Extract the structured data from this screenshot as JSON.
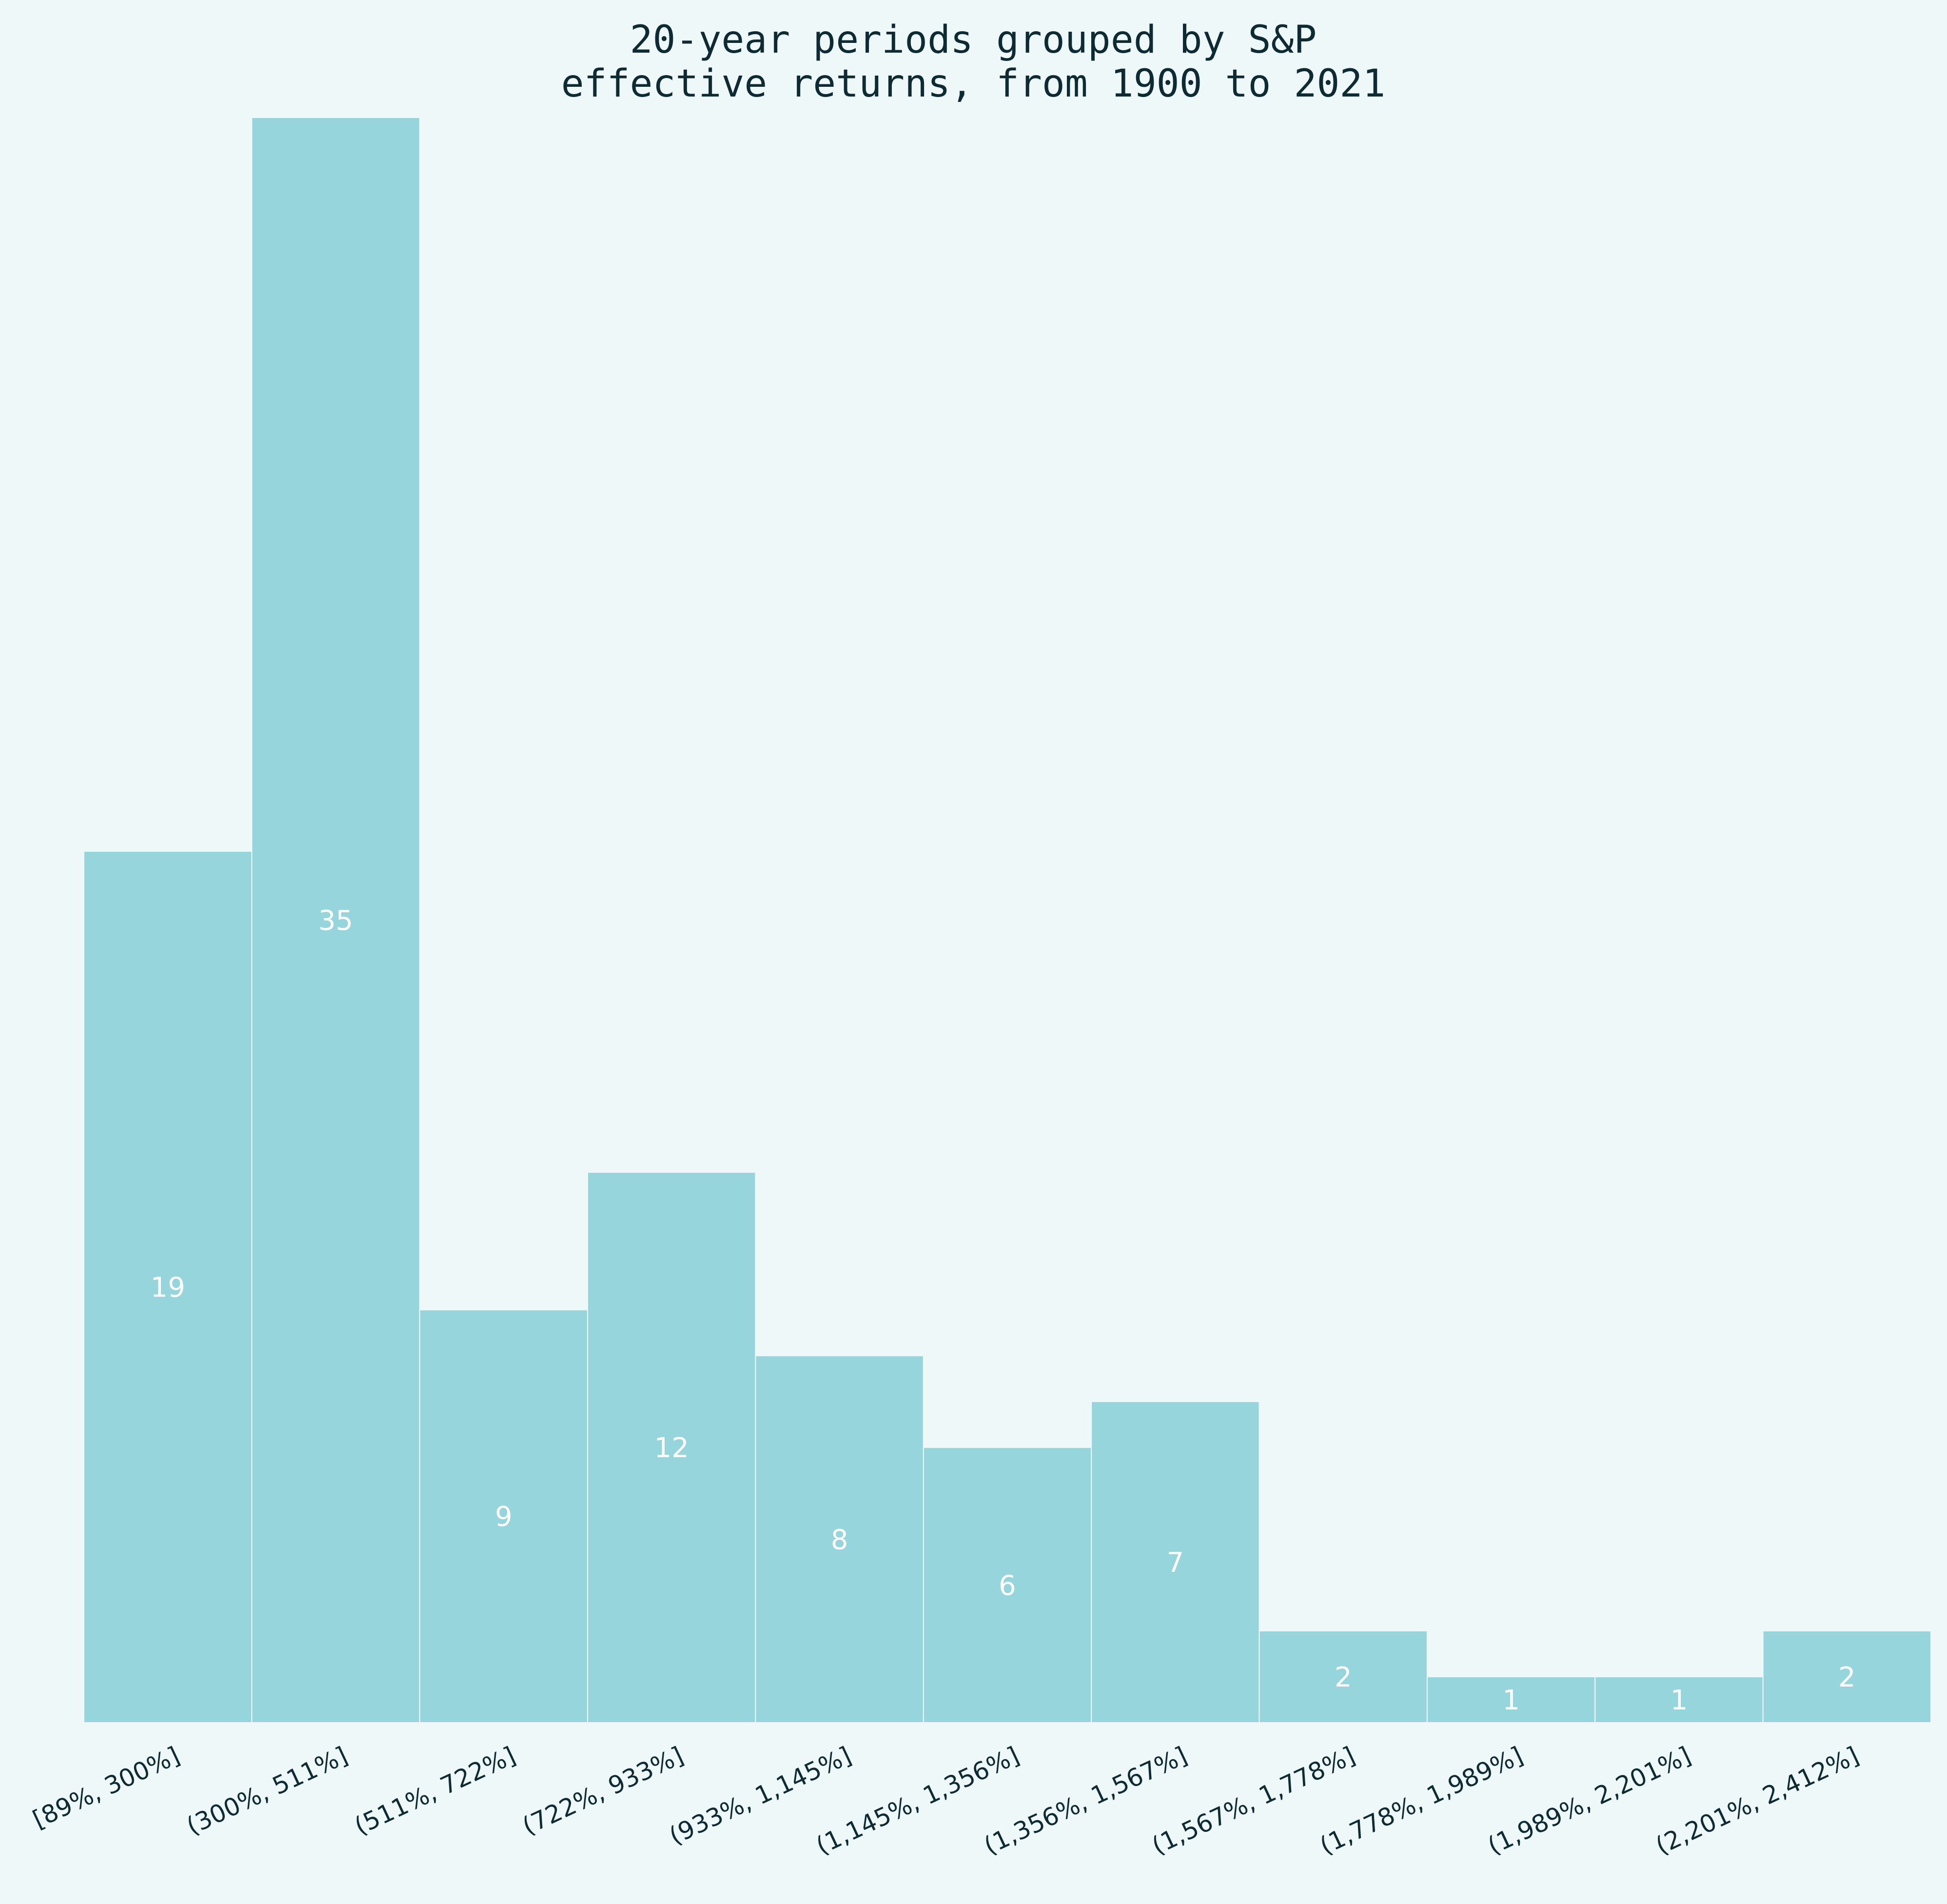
{
  "chart_data": {
    "type": "bar",
    "title": "20-year periods grouped by S&P\neffective returns, from 1900 to 2021",
    "title_lines": [
      "20-year periods grouped by S&P",
      "effective returns, from 1900 to 2021"
    ],
    "categories": [
      "[89%, 300%]",
      "(300%, 511%]",
      "(511%, 722%]",
      "(722%, 933%]",
      "(933%, 1,145%]",
      "(1,145%, 1,356%]",
      "(1,356%, 1,567%]",
      "(1,567%, 1,778%]",
      "(1,778%, 1,989%]",
      "(1,989%, 2,201%]",
      "(2,201%, 2,412%]"
    ],
    "values": [
      19,
      35,
      9,
      12,
      8,
      6,
      7,
      2,
      1,
      1,
      2
    ],
    "labels": [
      "19",
      "35",
      "9",
      "12",
      "8",
      "6",
      "7",
      "2",
      "1",
      "1",
      "2"
    ],
    "xlabel": "",
    "ylabel": "",
    "ylim": [
      0,
      35
    ],
    "grid": false,
    "legend": "none",
    "colors": {
      "background": "#eef8f9",
      "bar": "#96d5db",
      "bar_label": "#ffffff",
      "text": "#0e2a33"
    }
  }
}
